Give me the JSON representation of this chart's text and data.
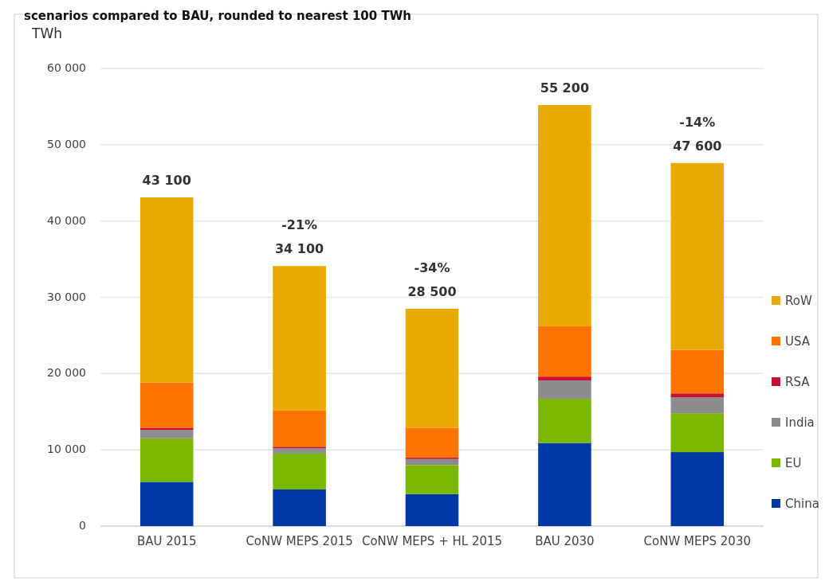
{
  "chart_data": {
    "type": "bar",
    "stacked": true,
    "title": "scenarios compared to BAU, rounded to nearest 100 TWh",
    "ylabel": "TWh",
    "categories": [
      "BAU 2015",
      "CoNW MEPS 2015",
      "CoNW MEPS + HL 2015",
      "BAU 2030",
      "CoNW MEPS 2030"
    ],
    "series": [
      {
        "name": "China",
        "color": "#0039a6",
        "values": [
          5800,
          4800,
          4200,
          10900,
          9700
        ]
      },
      {
        "name": "EU",
        "color": "#7ab800",
        "values": [
          5700,
          4700,
          3800,
          5800,
          5100
        ]
      },
      {
        "name": "India",
        "color": "#8c8c8c",
        "values": [
          1100,
          700,
          800,
          2400,
          2100
        ]
      },
      {
        "name": "RSA",
        "color": "#c8102e",
        "values": [
          300,
          200,
          200,
          500,
          500
        ]
      },
      {
        "name": "USA",
        "color": "#ff7300",
        "values": [
          5900,
          4800,
          3900,
          6600,
          5700
        ]
      },
      {
        "name": "RoW",
        "color": "#e8aa00",
        "values": [
          24300,
          18900,
          15600,
          29000,
          24500
        ]
      }
    ],
    "totals": [
      "43 100",
      "34 100",
      "28 500",
      "55 200",
      "47 600"
    ],
    "annotations": [
      {
        "text": "-21%",
        "x": "CoNW MEPS 2015",
        "y": 34100
      },
      {
        "text": "-34%",
        "x": "CoNW MEPS + HL 2015",
        "y": 28500
      },
      {
        "text": "-14%",
        "x": "CoNW MEPS 2030",
        "y": 47600
      }
    ],
    "ylim": [
      0,
      60000
    ],
    "yticks": [
      {
        "value": 0,
        "label": "0"
      },
      {
        "value": 10000,
        "label": "10 000"
      },
      {
        "value": 20000,
        "label": "20 000"
      },
      {
        "value": 30000,
        "label": "30 000"
      },
      {
        "value": 40000,
        "label": "40 000"
      },
      {
        "value": 50000,
        "label": "50 000"
      },
      {
        "value": 60000,
        "label": "60 000"
      }
    ],
    "grid": "y",
    "legend": "right"
  }
}
